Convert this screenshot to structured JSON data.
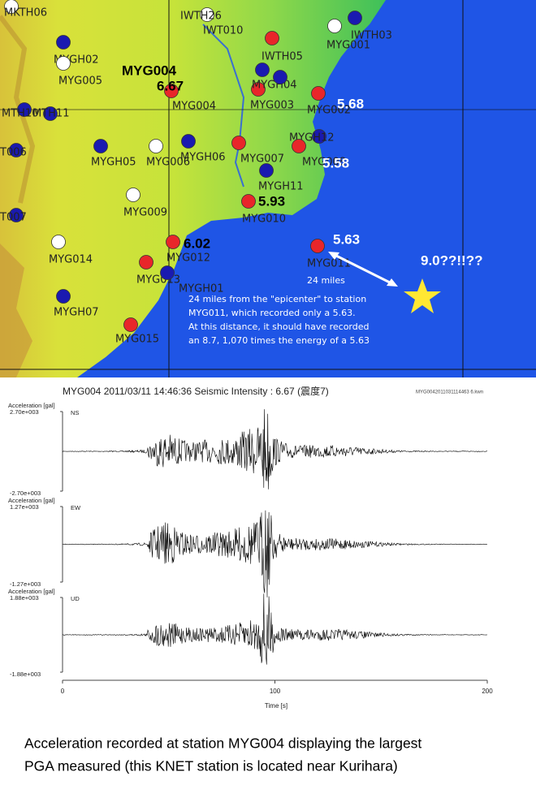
{
  "map": {
    "station_title": "MYG004",
    "magnitudes": [
      "6.67",
      "5.68",
      "5.58",
      "5.93",
      "6.02",
      "5.63"
    ],
    "epicenter_label": "9.0??!!??",
    "distance_label": "24 miles",
    "annotation": [
      "24 miles from the \"epicenter\" to station",
      "MYG011, which recorded only a 5.63.",
      "At this distance, it should have recorded",
      "an 8.7, 1,070 times the energy of a 5.63"
    ],
    "stations": [
      {
        "label": "MKTH06",
        "color": "#ffffff"
      },
      {
        "label": "IWTH26",
        "color": "#ffffff"
      },
      {
        "label": "IWT010",
        "color": "#e8262a"
      },
      {
        "label": "IWTH03",
        "color": "#1a1ab0"
      },
      {
        "label": "MYG001",
        "color": "#ffffff"
      },
      {
        "label": "MYGH02",
        "color": "#1a1ab0"
      },
      {
        "label": "MYG005",
        "color": "#ffffff"
      },
      {
        "label": "IWTH05",
        "color": "#1a1ab0"
      },
      {
        "label": "MYG004",
        "color": "#e8262a"
      },
      {
        "label": "MYGH04",
        "color": "#e8262a"
      },
      {
        "label": "MYG003",
        "color": "#1a1ab0"
      },
      {
        "label": "MYG002",
        "color": "#e8262a"
      },
      {
        "label": "MTH10",
        "color": "#1a1ab0"
      },
      {
        "label": "MTH11",
        "color": "#1a1ab0"
      },
      {
        "label": "MYGH12",
        "color": "#1a1ab0"
      },
      {
        "label": "T006",
        "color": "#1a1ab0"
      },
      {
        "label": "MYGH05",
        "color": "#1a1ab0"
      },
      {
        "label": "MYG006",
        "color": "#ffffff"
      },
      {
        "label": "MYGH06",
        "color": "#1a1ab0"
      },
      {
        "label": "MYG007",
        "color": "#e8262a"
      },
      {
        "label": "MYG008",
        "color": "#e8262a"
      },
      {
        "label": "MYGH11",
        "color": "#1a1ab0"
      },
      {
        "label": "MYG009",
        "color": "#ffffff"
      },
      {
        "label": "MYG010",
        "color": "#e8262a"
      },
      {
        "label": "T007",
        "color": "#1a1ab0"
      },
      {
        "label": "MYG014",
        "color": "#ffffff"
      },
      {
        "label": "MYG012",
        "color": "#e8262a"
      },
      {
        "label": "MYG011",
        "color": "#e8262a"
      },
      {
        "label": "MYG013",
        "color": "#e8262a"
      },
      {
        "label": "MYGH01",
        "color": "#1a1ab0"
      },
      {
        "label": "MYGH07",
        "color": "#1a1ab0"
      },
      {
        "label": "MYG015",
        "color": "#e8262a"
      }
    ]
  },
  "chart_data": {
    "type": "line",
    "title": "MYG004  2011/03/11 14:46:36  Seismic Intensity : 6.67   (震度7)",
    "file": "MYG0042011031114463 6.kwn",
    "x_label": "Time [s]",
    "xlim": [
      0,
      200
    ],
    "xticks": [
      0,
      100,
      200
    ],
    "panels": [
      {
        "name": "NS",
        "y_label": "Acceleration [gal]",
        "ylim": [
          -2700,
          2700
        ],
        "yticks": [
          {
            "value": 2700,
            "label": "2.70e+003"
          },
          {
            "value": -2700,
            "label": "-2.70e+003"
          }
        ]
      },
      {
        "name": "EW",
        "y_label": "Acceleration [gal]",
        "ylim": [
          -1270,
          1270
        ],
        "yticks": [
          {
            "value": 1270,
            "label": "1.27e+003"
          },
          {
            "value": -1270,
            "label": "-1.27e+003"
          }
        ]
      },
      {
        "name": "UD",
        "y_label": "Acceleration [gal]",
        "ylim": [
          -1880,
          1880
        ],
        "yticks": [
          {
            "value": 1880,
            "label": "1.88e+003"
          },
          {
            "value": -1880,
            "label": "-1.88e+003"
          }
        ]
      }
    ]
  },
  "caption": [
    "Acceleration recorded at station MYG004 displaying the largest",
    "PGA measured (this KNET station is located near Kurihara)"
  ]
}
